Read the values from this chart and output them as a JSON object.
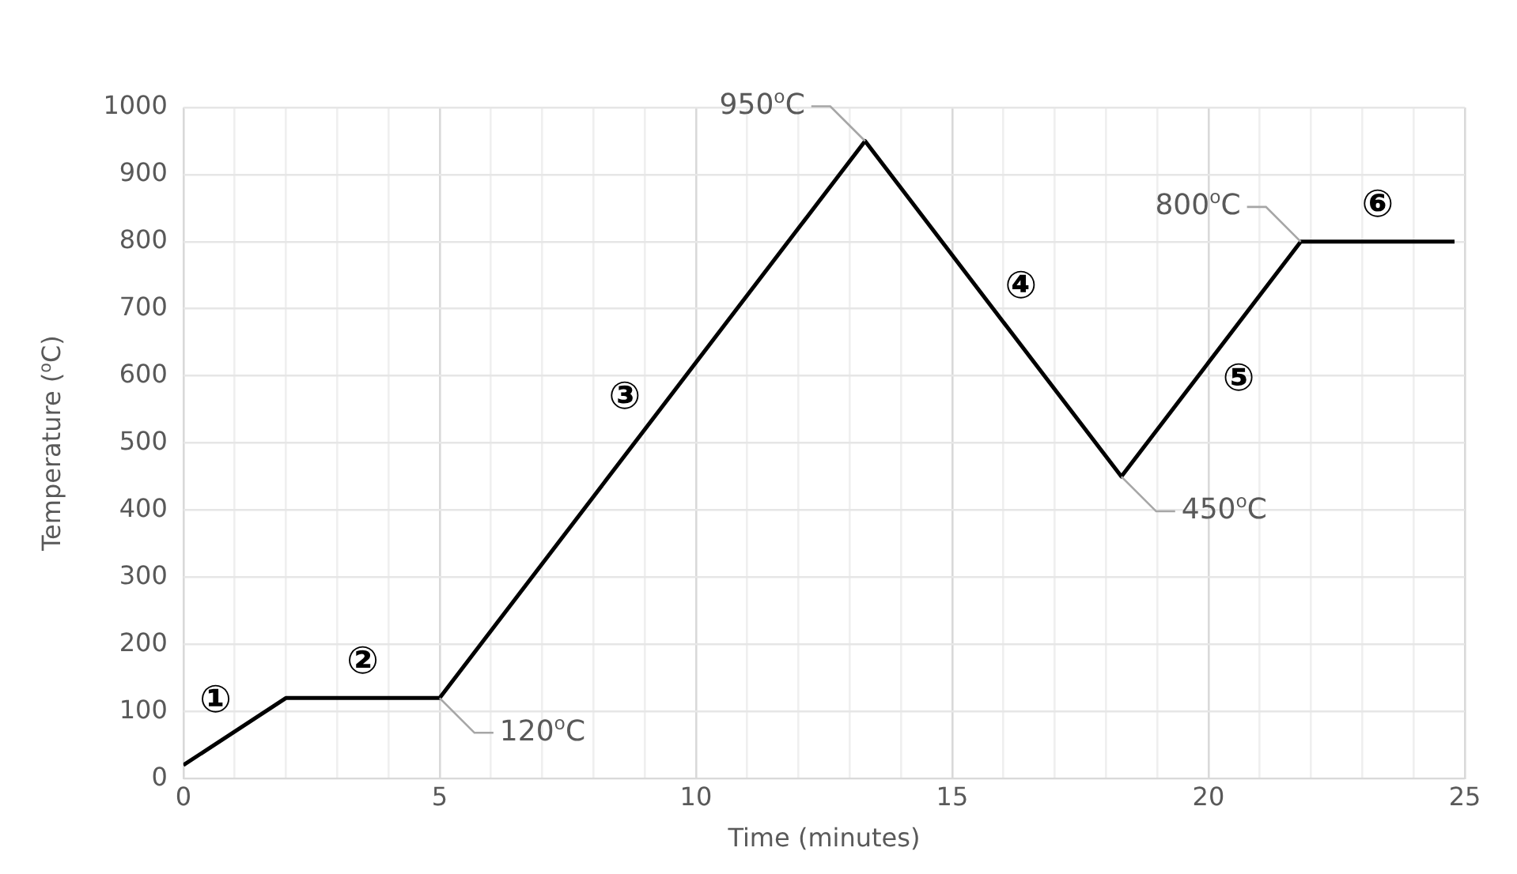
{
  "chart_data": {
    "type": "line",
    "xlabel": "Time (minutes)",
    "ylabel": "Temperature ($^{o}$C)",
    "x": [
      0,
      2,
      5,
      13.3,
      18.3,
      21.8,
      24.8
    ],
    "series": [
      {
        "color": "#000000",
        "values": [
          20,
          120,
          120,
          950,
          450,
          800,
          800
        ]
      }
    ],
    "xlim": [
      0,
      25
    ],
    "xticks": [
      0,
      {
        "value": 1,
        "label": null
      },
      {
        "value": 2,
        "label": null
      },
      {
        "value": 3,
        "label": null
      },
      {
        "value": 4,
        "label": null
      },
      5,
      {
        "value": 6,
        "label": null
      },
      {
        "value": 7,
        "label": null
      },
      {
        "value": 8,
        "label": null
      },
      {
        "value": 9,
        "label": null
      },
      10,
      {
        "value": 11,
        "label": null
      },
      {
        "value": 12,
        "label": null
      },
      {
        "value": 13,
        "label": null
      },
      {
        "value": 14,
        "label": null
      },
      15,
      {
        "value": 16,
        "label": null
      },
      {
        "value": 17,
        "label": null
      },
      {
        "value": 18,
        "label": null
      },
      {
        "value": 19,
        "label": null
      },
      20,
      {
        "value": 21,
        "label": null
      },
      {
        "value": 22,
        "label": null
      },
      {
        "value": 23,
        "label": null
      },
      {
        "value": 24,
        "label": null
      },
      25
    ],
    "ylim": [
      0,
      1000
    ],
    "yticks": [
      0,
      100,
      200,
      300,
      400,
      500,
      600,
      700,
      800,
      900,
      1000
    ],
    "grid": true,
    "legend": false,
    "marker": "none",
    "line_style": "solid",
    "annotations": [
      {
        "text": "120$^{o}$C",
        "x": 5,
        "y": 120
      },
      {
        "text": "950$^{o}$C",
        "x": 13.3,
        "y": 950
      },
      {
        "text": "450$^{o}$C",
        "x": 18.3,
        "y": 450
      },
      {
        "text": "800$^{o}$C",
        "x": 21.8,
        "y": 800
      },
      "①",
      "②",
      "③",
      "④",
      "⑤",
      "⑥"
    ]
  }
}
